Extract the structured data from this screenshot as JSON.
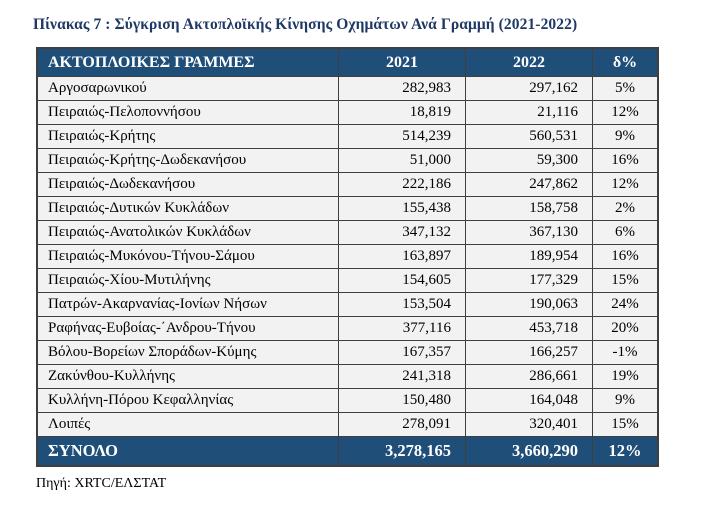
{
  "title": "Πίνακας 7 : Σύγκριση Ακτοπλοϊκής Κίνησης Οχημάτων Ανά Γραμμή (2021-2022)",
  "source": "Πηγή: XRTC/ΕΛΣΤΑΤ",
  "colors": {
    "header_bg": "#1f4e79",
    "title_text": "#1f3864",
    "body_bg": "#f2f2f2",
    "border": "#3f3f3f"
  },
  "table": {
    "headers": {
      "lines": "ΑΚΤΟΠΛΟΙΚΕΣ ΓΡΑΜΜΕΣ",
      "y2021": "2021",
      "y2022": "2022",
      "delta": "δ%"
    },
    "rows": [
      {
        "line": "Αργοσαρωνικού",
        "y2021": "282,983",
        "y2022": "297,162",
        "delta": "5%"
      },
      {
        "line": "Πειραιώς-Πελοποννήσου",
        "y2021": "18,819",
        "y2022": "21,116",
        "delta": "12%"
      },
      {
        "line": "Πειραιώς-Κρήτης",
        "y2021": "514,239",
        "y2022": "560,531",
        "delta": "9%"
      },
      {
        "line": "Πειραιώς-Κρήτης-Δωδεκανήσου",
        "y2021": "51,000",
        "y2022": "59,300",
        "delta": "16%"
      },
      {
        "line": "Πειραιώς-Δωδεκανήσου",
        "y2021": "222,186",
        "y2022": "247,862",
        "delta": "12%"
      },
      {
        "line": "Πειραιώς-Δυτικών Κυκλάδων",
        "y2021": "155,438",
        "y2022": "158,758",
        "delta": "2%"
      },
      {
        "line": "Πειραιώς-Ανατολικών Κυκλάδων",
        "y2021": "347,132",
        "y2022": "367,130",
        "delta": "6%"
      },
      {
        "line": "Πειραιώς-Μυκόνου-Τήνου-Σάμου",
        "y2021": "163,897",
        "y2022": "189,954",
        "delta": "16%"
      },
      {
        "line": "Πειραιώς-Χίου-Μυτιλήνης",
        "y2021": "154,605",
        "y2022": "177,329",
        "delta": "15%"
      },
      {
        "line": "Πατρών-Ακαρνανίας-Ιονίων Νήσων",
        "y2021": "153,504",
        "y2022": "190,063",
        "delta": "24%"
      },
      {
        "line": "Ραφήνας-Ευβοίας-΄Ανδρου-Τήνου",
        "y2021": "377,116",
        "y2022": "453,718",
        "delta": "20%"
      },
      {
        "line": "Βόλου-Βορείων Σποράδων-Κύμης",
        "y2021": "167,357",
        "y2022": "166,257",
        "delta": "-1%"
      },
      {
        "line": "Ζακύνθου-Κυλλήνης",
        "y2021": "241,318",
        "y2022": "286,661",
        "delta": "19%"
      },
      {
        "line": "Κυλλήνη-Πόρου Κεφαλληνίας",
        "y2021": "150,480",
        "y2022": "164,048",
        "delta": "9%"
      },
      {
        "line": "Λοιπές",
        "y2021": "278,091",
        "y2022": "320,401",
        "delta": "15%"
      }
    ],
    "total": {
      "line": "ΣΥΝΟΛΟ",
      "y2021": "3,278,165",
      "y2022": "3,660,290",
      "delta": "12%"
    }
  }
}
